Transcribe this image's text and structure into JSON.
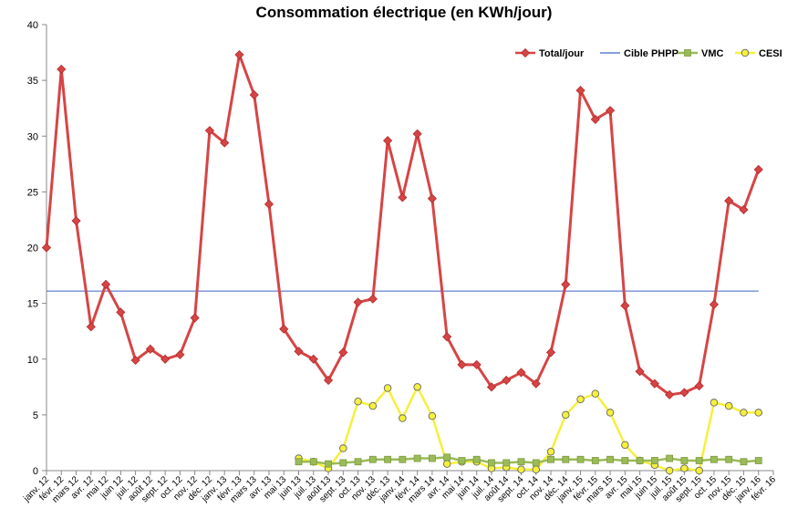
{
  "chart_data": {
    "type": "line",
    "title": "Consommation électrique (en KWh/jour)",
    "xlabel": "",
    "ylabel": "",
    "ylim": [
      0,
      40
    ],
    "yticks": [
      0,
      5,
      10,
      15,
      20,
      25,
      30,
      35,
      40
    ],
    "grid": false,
    "legend_position": "top-right",
    "categories": [
      "janv. 12",
      "févr. 12",
      "mars 12",
      "avr. 12",
      "mai 12",
      "juin 12",
      "juil. 12",
      "août 12",
      "sept. 12",
      "oct. 12",
      "nov. 12",
      "déc. 12",
      "janv. 13",
      "févr. 13",
      "mars 13",
      "avr. 13",
      "mai 13",
      "juin 13",
      "juil. 13",
      "août 13",
      "sept. 13",
      "oct. 13",
      "nov. 13",
      "déc. 13",
      "janv. 14",
      "févr. 14",
      "mars 14",
      "avr. 14",
      "mai 14",
      "juin 14",
      "juil. 14",
      "août 14",
      "sept. 14",
      "oct. 14",
      "nov. 14",
      "déc. 14",
      "janv. 15",
      "févr. 15",
      "mars 15",
      "avr. 15",
      "mai 15",
      "juin 15",
      "juil. 15",
      "août 15",
      "sept. 15",
      "oct. 15",
      "nov. 15",
      "déc. 15",
      "janv. 16",
      "févr. 16"
    ],
    "series": [
      {
        "name": "Total/jour",
        "color": "#d64545",
        "marker": "diamond",
        "values": [
          20,
          36,
          22.4,
          12.9,
          16.7,
          14.2,
          9.9,
          10.9,
          10,
          10.4,
          13.7,
          30.5,
          29.4,
          37.3,
          33.7,
          23.9,
          12.7,
          10.7,
          10,
          8.1,
          10.6,
          15.1,
          15.4,
          29.6,
          24.5,
          30.2,
          24.4,
          12,
          9.5,
          9.5,
          7.5,
          8.1,
          8.8,
          7.8,
          10.6,
          16.7,
          34.1,
          31.5,
          32.3,
          14.8,
          8.9,
          7.8,
          6.8,
          7,
          7.6,
          14.9,
          24.2,
          23.4,
          27,
          null
        ]
      },
      {
        "name": "Cible PHPP",
        "color": "#3a64c9",
        "marker": "none",
        "values": [
          16.1,
          16.1,
          16.1,
          16.1,
          16.1,
          16.1,
          16.1,
          16.1,
          16.1,
          16.1,
          16.1,
          16.1,
          16.1,
          16.1,
          16.1,
          16.1,
          16.1,
          16.1,
          16.1,
          16.1,
          16.1,
          16.1,
          16.1,
          16.1,
          16.1,
          16.1,
          16.1,
          16.1,
          16.1,
          16.1,
          16.1,
          16.1,
          16.1,
          16.1,
          16.1,
          16.1,
          16.1,
          16.1,
          16.1,
          16.1,
          16.1,
          16.1,
          16.1,
          16.1,
          16.1,
          16.1,
          16.1,
          16.1,
          16.1,
          null
        ]
      },
      {
        "name": "VMC",
        "color": "#9bbb59",
        "marker": "square",
        "values": [
          null,
          null,
          null,
          null,
          null,
          null,
          null,
          null,
          null,
          null,
          null,
          null,
          null,
          null,
          null,
          null,
          null,
          0.8,
          0.8,
          0.6,
          0.7,
          0.8,
          1,
          1,
          1,
          1.1,
          1.1,
          1.2,
          0.9,
          1,
          0.7,
          0.7,
          0.8,
          0.7,
          1,
          1,
          1,
          0.9,
          1,
          0.9,
          0.9,
          0.9,
          1.1,
          0.9,
          0.9,
          1,
          1,
          0.8,
          0.9,
          null
        ]
      },
      {
        "name": "CESI",
        "color": "#f5f03c",
        "marker": "circle",
        "values": [
          null,
          null,
          null,
          null,
          null,
          null,
          null,
          null,
          null,
          null,
          null,
          null,
          null,
          null,
          null,
          null,
          null,
          1.1,
          0.8,
          0.2,
          2,
          6.2,
          5.8,
          7.4,
          4.7,
          7.5,
          4.9,
          0.6,
          0.8,
          0.8,
          0.2,
          0.3,
          0.1,
          0.1,
          1.7,
          5,
          6.4,
          6.9,
          5.2,
          2.3,
          0.9,
          0.5,
          0,
          0.2,
          0,
          6.1,
          5.8,
          5.2,
          5.2,
          null
        ]
      }
    ]
  }
}
